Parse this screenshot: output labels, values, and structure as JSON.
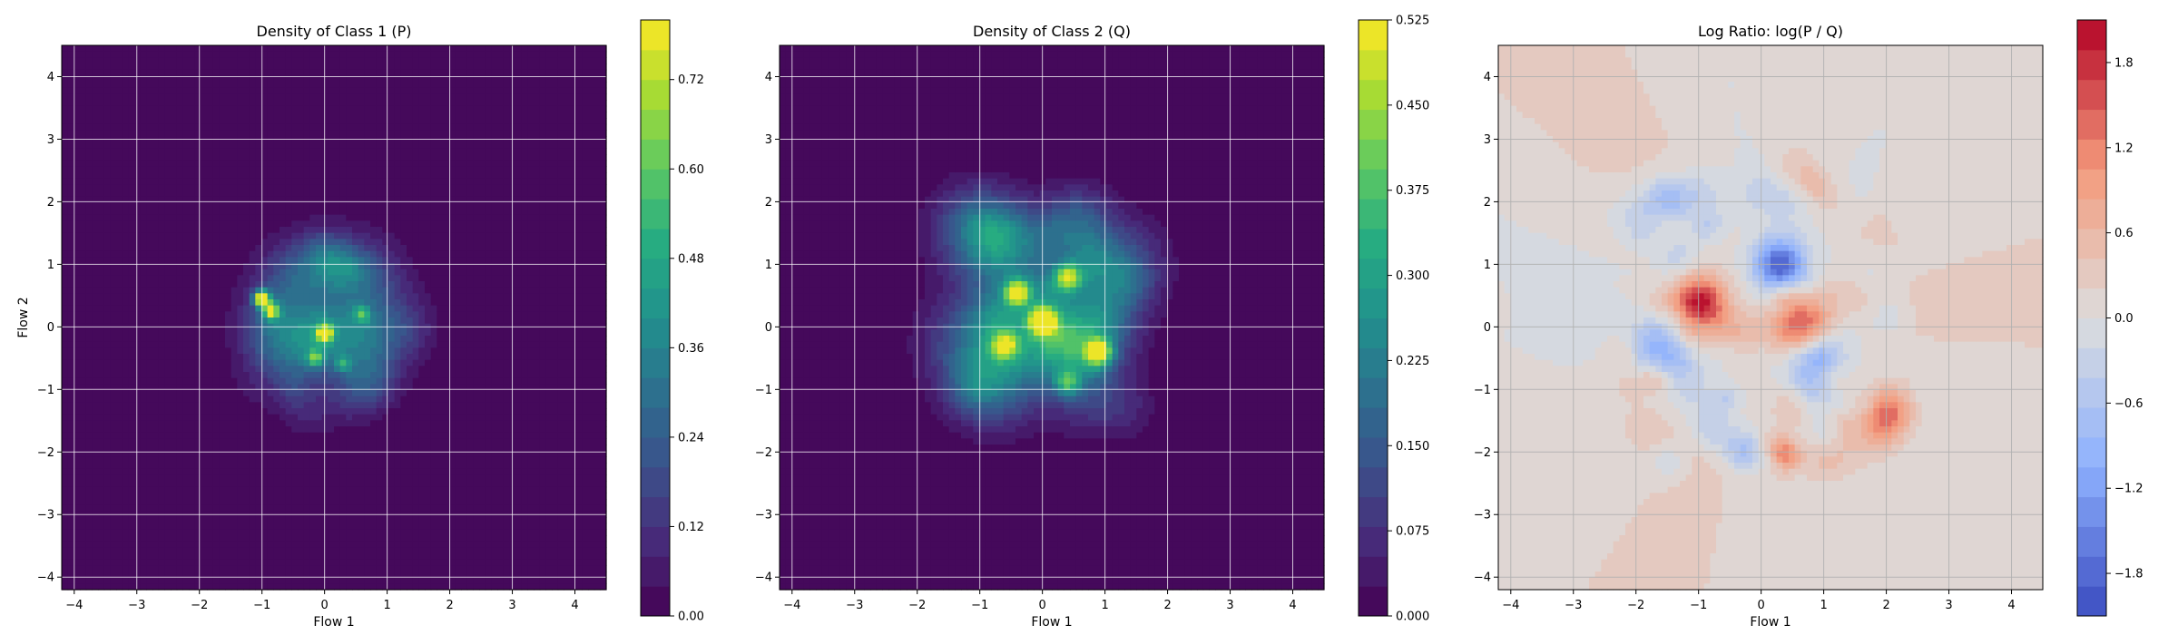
{
  "figure": {
    "background": "#ffffff"
  },
  "chart_data": [
    {
      "type": "heatmap",
      "title": "Density of Class 1 (P)",
      "xlabel": "Flow 1",
      "ylabel": "Flow 2",
      "xlim": [
        -4.2,
        4.5
      ],
      "ylim": [
        -4.2,
        4.5
      ],
      "xticks": [
        -4,
        -3,
        -2,
        -1,
        0,
        1,
        2,
        3,
        4
      ],
      "yticks": [
        -4,
        -3,
        -2,
        -1,
        0,
        1,
        2,
        3,
        4
      ],
      "xtick_labels": [
        "−4",
        "−3",
        "−2",
        "−1",
        "0",
        "1",
        "2",
        "3",
        "4"
      ],
      "ytick_labels": [
        "−4",
        "−3",
        "−2",
        "−1",
        "0",
        "1",
        "2",
        "3",
        "4"
      ],
      "grid": true,
      "colormap": "viridis",
      "colorbar": {
        "min": 0.0,
        "max": 0.8,
        "ticks": [
          0.0,
          0.12,
          0.24,
          0.36,
          0.48,
          0.6,
          0.72
        ],
        "tick_labels": [
          "0.00",
          "0.12",
          "0.24",
          "0.36",
          "0.48",
          "0.60",
          "0.72"
        ]
      },
      "approx_peaks": [
        {
          "x": -1.0,
          "y": 0.45,
          "value": 0.78
        },
        {
          "x": -0.85,
          "y": 0.25,
          "value": 0.55
        },
        {
          "x": 0.0,
          "y": -0.1,
          "value": 0.55
        },
        {
          "x": -0.15,
          "y": -0.5,
          "value": 0.35
        },
        {
          "x": 0.6,
          "y": 0.2,
          "value": 0.3
        },
        {
          "x": 0.3,
          "y": -0.6,
          "value": 0.25
        }
      ],
      "support_region": "roughly x in [-1.7, 2.0], y in [-1.8, 1.9]"
    },
    {
      "type": "heatmap",
      "title": "Density of Class 2 (Q)",
      "xlabel": "Flow 1",
      "ylabel": "",
      "xlim": [
        -4.2,
        4.5
      ],
      "ylim": [
        -4.2,
        4.5
      ],
      "xticks": [
        -4,
        -3,
        -2,
        -1,
        0,
        1,
        2,
        3,
        4
      ],
      "yticks": [
        -4,
        -3,
        -2,
        -1,
        0,
        1,
        2,
        3,
        4
      ],
      "xtick_labels": [
        "−4",
        "−3",
        "−2",
        "−1",
        "0",
        "1",
        "2",
        "3",
        "4"
      ],
      "ytick_labels": [
        "−4",
        "−3",
        "−2",
        "−1",
        "0",
        "1",
        "2",
        "3",
        "4"
      ],
      "grid": true,
      "colormap": "viridis",
      "colorbar": {
        "min": 0.0,
        "max": 0.525,
        "ticks": [
          0.0,
          0.075,
          0.15,
          0.225,
          0.3,
          0.375,
          0.45,
          0.525
        ],
        "tick_labels": [
          "0.000",
          "0.075",
          "0.150",
          "0.225",
          "0.300",
          "0.375",
          "0.450",
          "0.525"
        ]
      },
      "approx_peaks": [
        {
          "x": 0.0,
          "y": 0.1,
          "value": 0.52
        },
        {
          "x": -0.4,
          "y": 0.55,
          "value": 0.4
        },
        {
          "x": 0.9,
          "y": -0.4,
          "value": 0.42
        },
        {
          "x": 0.4,
          "y": 0.8,
          "value": 0.3
        },
        {
          "x": -0.6,
          "y": -0.3,
          "value": 0.28
        },
        {
          "x": 0.4,
          "y": -0.9,
          "value": 0.22
        }
      ],
      "support_region": "roughly x in [-2.0, 2.0], y in [-2.0, 2.4]"
    },
    {
      "type": "heatmap",
      "title": "Log Ratio: log(P / Q)",
      "xlabel": "Flow 1",
      "ylabel": "",
      "xlim": [
        -4.2,
        4.5
      ],
      "ylim": [
        -4.2,
        4.5
      ],
      "xticks": [
        -4,
        -3,
        -2,
        -1,
        0,
        1,
        2,
        3,
        4
      ],
      "yticks": [
        -4,
        -3,
        -2,
        -1,
        0,
        1,
        2,
        3,
        4
      ],
      "xtick_labels": [
        "−4",
        "−3",
        "−2",
        "−1",
        "0",
        "1",
        "2",
        "3",
        "4"
      ],
      "ytick_labels": [
        "−4",
        "−3",
        "−2",
        "−1",
        "0",
        "1",
        "2",
        "3",
        "4"
      ],
      "grid": true,
      "colormap": "coolwarm",
      "colorbar": {
        "min": -2.1,
        "max": 2.1,
        "ticks": [
          -1.8,
          -1.2,
          -0.6,
          0.0,
          0.6,
          1.2,
          1.8
        ],
        "tick_labels": [
          "−1.8",
          "−1.2",
          "−0.6",
          "0.0",
          "0.6",
          "1.2",
          "1.8"
        ]
      },
      "approx_extremes": [
        {
          "x": -1.0,
          "y": 0.4,
          "value": 2.0
        },
        {
          "x": 0.6,
          "y": 0.1,
          "value": 1.2
        },
        {
          "x": 2.0,
          "y": -1.3,
          "value": 1.2
        },
        {
          "x": 0.3,
          "y": 1.0,
          "value": -1.9
        },
        {
          "x": -1.5,
          "y": 2.0,
          "value": -1.0
        },
        {
          "x": 0.9,
          "y": -0.5,
          "value": -1.0
        },
        {
          "x": -1.7,
          "y": -0.3,
          "value": -0.9
        }
      ],
      "background_note": "slightly positive (light salmon) rays in lower-left and right, near-zero grey elsewhere"
    }
  ]
}
